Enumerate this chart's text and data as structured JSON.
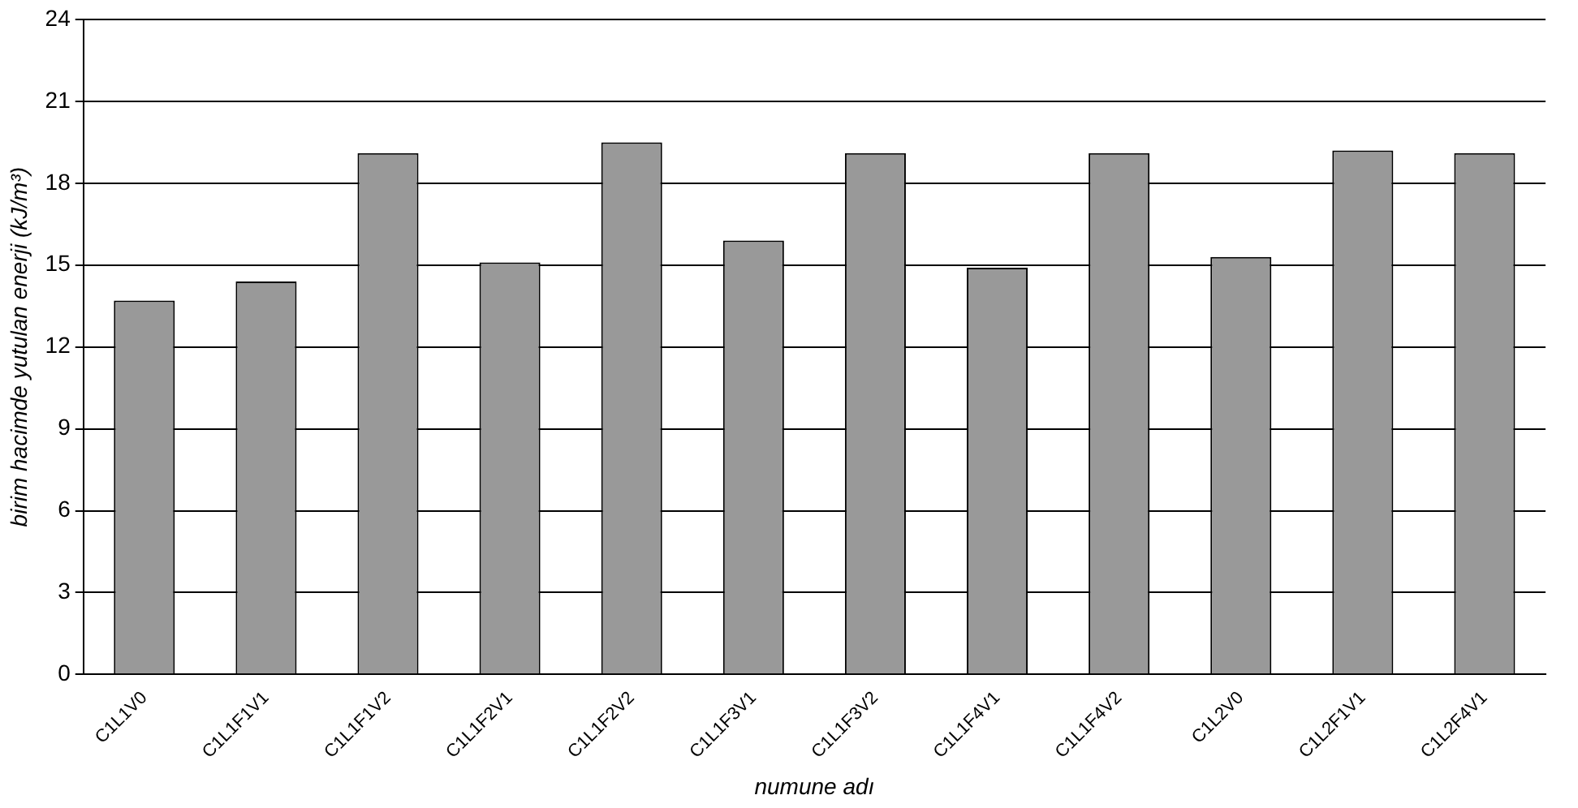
{
  "chart_data": {
    "type": "bar",
    "xlabel": "numune adı",
    "ylabel": "birim hacimde yutulan enerji (kJ/m³)",
    "categories": [
      "C1L1V0",
      "C1L1F1V1",
      "C1L1F1V2",
      "C1L1F2V1",
      "C1L1F2V2",
      "C1L1F3V1",
      "C1L1F3V2",
      "C1L1F4V1",
      "C1L1F4V2",
      "C1L2V0",
      "C1L2F1V1",
      "C1L2F4V1"
    ],
    "values": [
      13.7,
      14.4,
      19.1,
      15.1,
      19.5,
      15.9,
      19.1,
      14.9,
      19.1,
      15.3,
      19.2,
      19.1
    ],
    "color": "#999999",
    "ylim": [
      0,
      24
    ],
    "yticks": [
      0,
      3,
      6,
      9,
      12,
      15,
      18,
      21,
      24
    ],
    "grid": "y",
    "legend": false
  }
}
